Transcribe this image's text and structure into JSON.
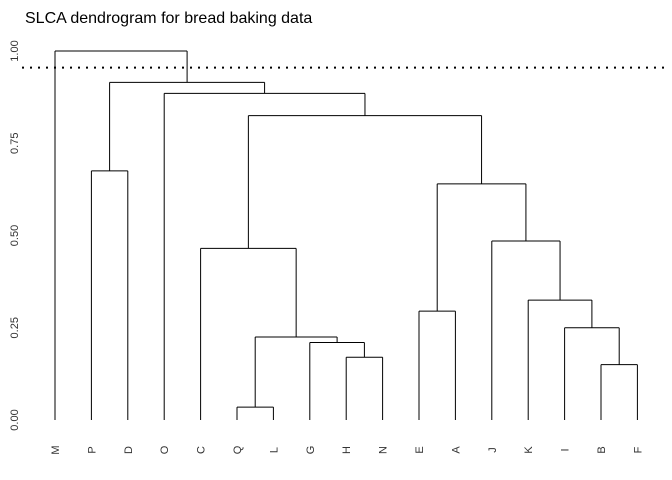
{
  "chart_data": {
    "type": "dendrogram",
    "title": "SLCA dendrogram for bread baking data",
    "ylim": [
      0,
      1
    ],
    "yticks": [
      "0.00",
      "0.25",
      "0.50",
      "0.75",
      "1.00"
    ],
    "ytick_values": [
      0,
      0.25,
      0.5,
      0.75,
      1.0
    ],
    "cutoff": 0.955,
    "leaves": [
      "M",
      "P",
      "D",
      "O",
      "C",
      "Q",
      "L",
      "G",
      "H",
      "N",
      "E",
      "A",
      "J",
      "K",
      "I",
      "B",
      "F"
    ],
    "merges": [
      {
        "id": "c1",
        "a": "Q",
        "b": "L",
        "height": 0.035
      },
      {
        "id": "c2",
        "a": "H",
        "b": "N",
        "height": 0.17
      },
      {
        "id": "c3",
        "a": "B",
        "b": "F",
        "height": 0.15
      },
      {
        "id": "c4",
        "a": "G",
        "b": "c2",
        "height": 0.21
      },
      {
        "id": "c5",
        "a": "c1",
        "b": "c4",
        "height": 0.225
      },
      {
        "id": "c6",
        "a": "I",
        "b": "c3",
        "height": 0.25
      },
      {
        "id": "c7",
        "a": "E",
        "b": "A",
        "height": 0.295
      },
      {
        "id": "c8",
        "a": "K",
        "b": "c6",
        "height": 0.325
      },
      {
        "id": "c9",
        "a": "C",
        "b": "c5",
        "height": 0.465
      },
      {
        "id": "c10",
        "a": "J",
        "b": "c8",
        "height": 0.485
      },
      {
        "id": "c11",
        "a": "c7",
        "b": "c10",
        "height": 0.64
      },
      {
        "id": "c12",
        "a": "P",
        "b": "D",
        "height": 0.675
      },
      {
        "id": "c13",
        "a": "c9",
        "b": "c11",
        "height": 0.825
      },
      {
        "id": "c14",
        "a": "O",
        "b": "c13",
        "height": 0.885
      },
      {
        "id": "c15",
        "a": "c12",
        "b": "c14",
        "height": 0.915
      },
      {
        "id": "c16",
        "a": "M",
        "b": "c15",
        "height": 1.0
      }
    ]
  }
}
